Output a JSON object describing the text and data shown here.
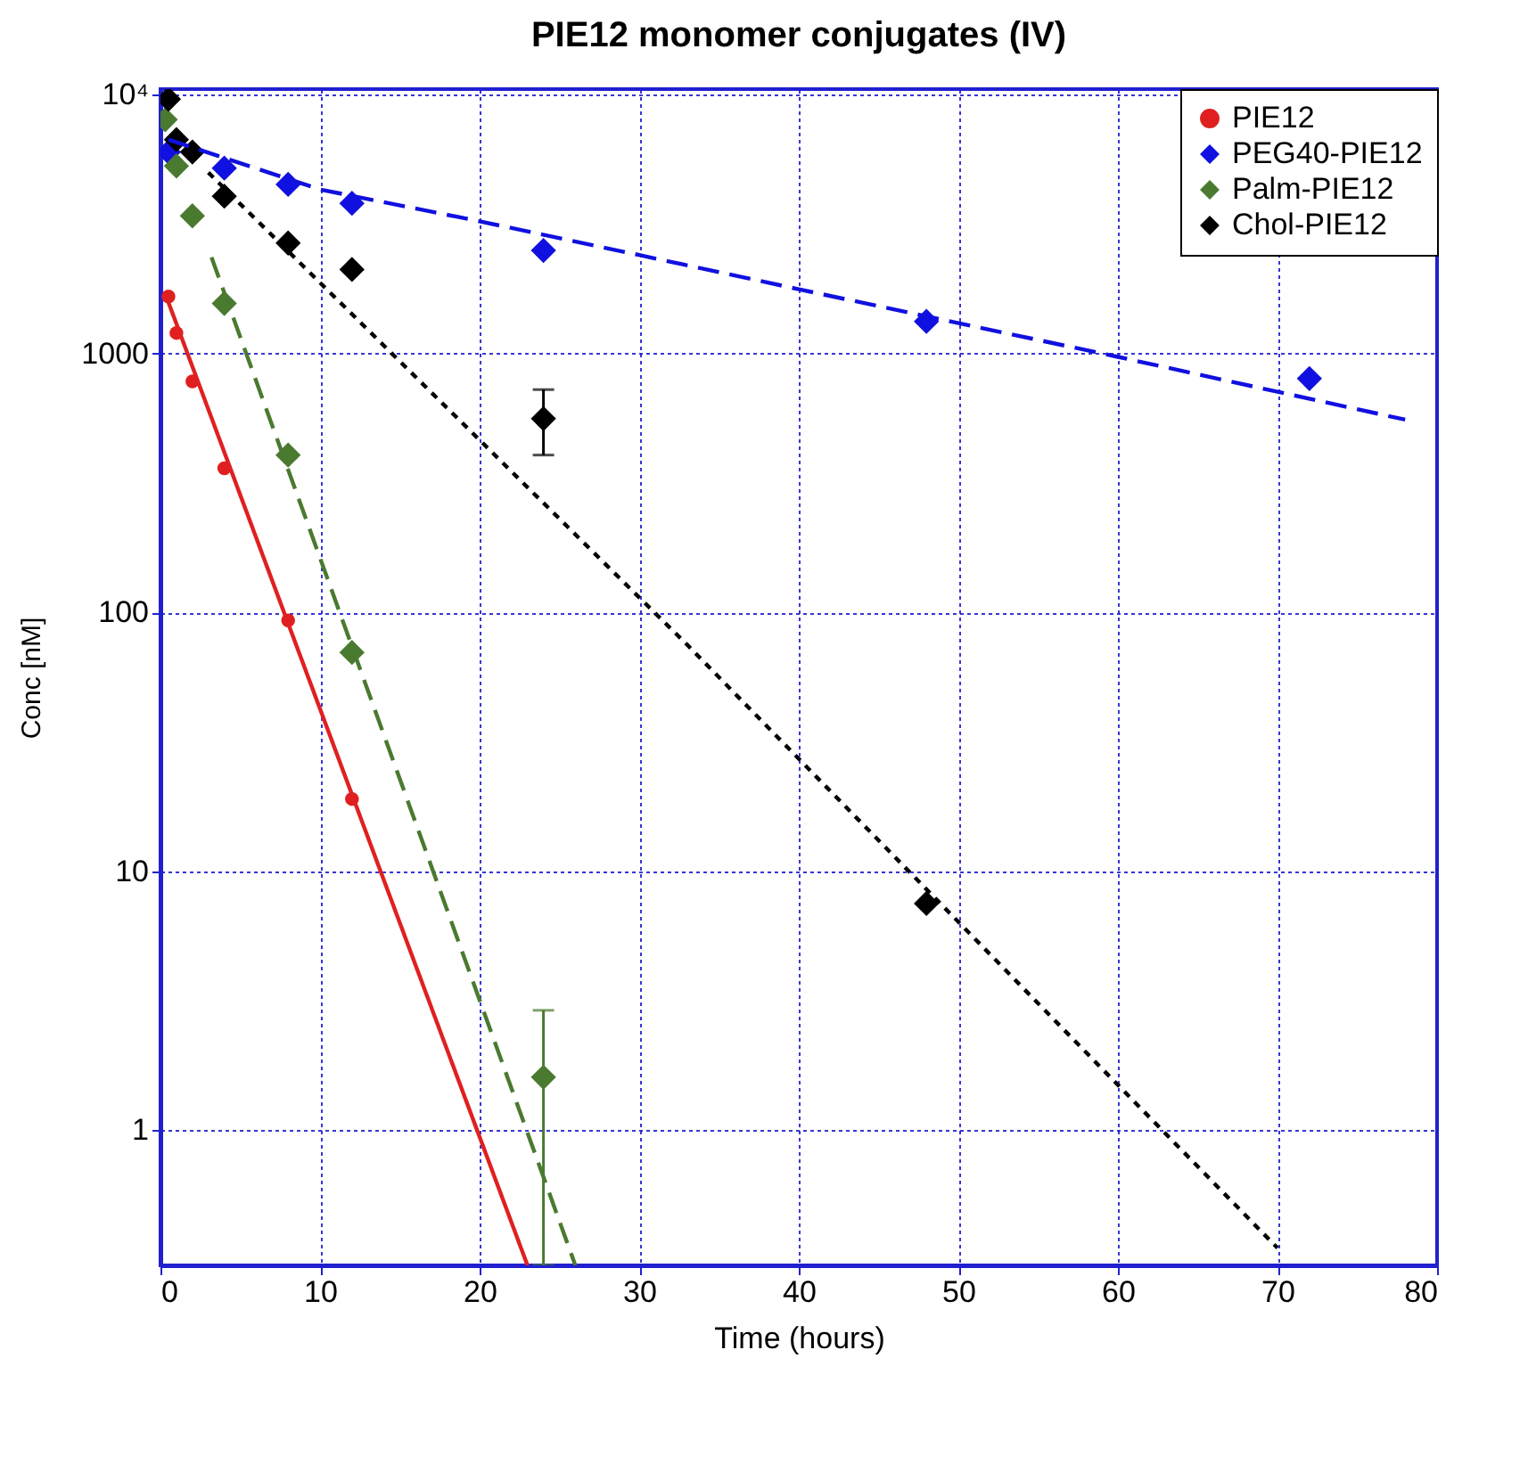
{
  "chart_data": {
    "type": "scatter",
    "title": "PIE12 monomer conjugates (IV)",
    "xlabel": "Time (hours)",
    "ylabel": "Conc [nM]",
    "xlim": [
      0,
      80
    ],
    "xticks": [
      0,
      10,
      20,
      30,
      40,
      50,
      60,
      70,
      80
    ],
    "ylim": [
      0.3,
      10500
    ],
    "yticks": [
      1,
      10,
      100,
      1000,
      {
        "value": 10000,
        "label": "10⁴"
      }
    ],
    "log": "y",
    "grid": true,
    "legend": "top right",
    "series": [
      {
        "name": "PIE12",
        "marker": "circle",
        "color": "#e02020",
        "x": [
          0.5,
          1,
          2,
          4,
          8,
          12
        ],
        "values": [
          1660,
          1200,
          780,
          360,
          93,
          19
        ]
      },
      {
        "name": "PEG40-PIE12",
        "marker": "diamond",
        "color": "#1010e0",
        "x": [
          0.5,
          2,
          4,
          8,
          12,
          24,
          48,
          72
        ],
        "values": [
          6000,
          null,
          5200,
          4500,
          3800,
          2500,
          1330,
          800
        ]
      },
      {
        "name": "Palm-PIE12",
        "marker": "diamond",
        "color": "#4a7a30",
        "x": [
          0.3,
          1,
          2,
          4,
          8,
          12,
          24
        ],
        "values": [
          8000,
          5300,
          3400,
          1560,
          405,
          70,
          1.6
        ],
        "errors": [
          null,
          null,
          null,
          null,
          null,
          null,
          [
            0.3,
            2.9
          ]
        ]
      },
      {
        "name": "Chol-PIE12",
        "marker": "diamond",
        "color": "#000000",
        "x": [
          0.5,
          1,
          2,
          4,
          8,
          12,
          24,
          48
        ],
        "values": [
          9600,
          6700,
          6000,
          4050,
          2670,
          2110,
          560,
          7.5
        ],
        "errors": [
          null,
          null,
          null,
          null,
          null,
          null,
          [
            405,
            725
          ],
          null
        ]
      },
      {
        "type": "line",
        "line_style": "solid",
        "color": "#e02020",
        "x": [
          0.3,
          23
        ],
        "values": [
          1700,
          0.3
        ]
      },
      {
        "type": "line",
        "line_style": "dashed",
        "color": "#1010e0",
        "x": [
          0.5,
          10,
          20,
          30,
          40,
          60,
          78
        ],
        "values": [
          6700,
          4300,
          3240,
          2400,
          1770,
          970,
          555
        ]
      },
      {
        "type": "line",
        "line_style": "dashed",
        "color": "#4a7a30",
        "x": [
          3.2,
          26
        ],
        "values": [
          2350,
          0.3
        ]
      },
      {
        "type": "line",
        "line_style": "dotted",
        "color": "#000000",
        "x": [
          3,
          33,
          70
        ],
        "values": [
          5000,
          75,
          0.35
        ]
      }
    ]
  }
}
